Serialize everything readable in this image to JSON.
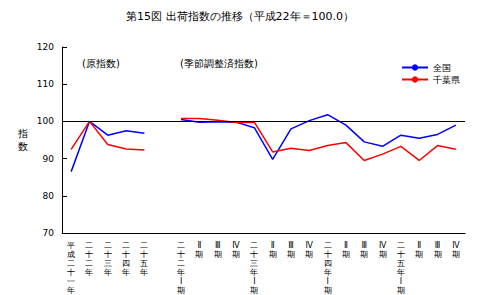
{
  "chart_data": {
    "type": "line",
    "title": "第15図 出荷指数の推移（平成22年＝100.0）",
    "y_label": "指数",
    "annotations": [
      "(原指数)",
      "(季節調整済指数)"
    ],
    "categories": [
      "平成二十一年",
      "二十二年",
      "二十三年",
      "二十四年",
      "二十五年",
      null,
      "二十二年Ⅰ期",
      "Ⅱ期",
      "Ⅲ期",
      "Ⅳ期",
      "二十三年Ⅰ期",
      "Ⅱ期",
      "Ⅲ期",
      "Ⅳ期",
      "二十四年Ⅰ期",
      "Ⅱ期",
      "Ⅲ期",
      "Ⅳ期",
      "二十五年Ⅰ期",
      "Ⅱ期",
      "Ⅲ期",
      "Ⅳ期"
    ],
    "series": [
      {
        "name": "全国",
        "color": "#0000ff",
        "values": [
          86.5,
          100,
          96.3,
          97.5,
          96.8,
          null,
          100.5,
          99.8,
          99.9,
          99.8,
          98.3,
          89.8,
          98.0,
          100.2,
          101.8,
          99.0,
          94.5,
          93.3,
          96.3,
          95.5,
          96.5,
          99.0
        ]
      },
      {
        "name": "千葉県",
        "color": "#ff0000",
        "values": [
          92.5,
          100,
          93.8,
          92.6,
          92.3,
          null,
          100.8,
          100.8,
          100.3,
          99.7,
          99.8,
          91.8,
          92.8,
          92.2,
          93.5,
          94.3,
          89.5,
          91.2,
          93.3,
          89.5,
          93.5,
          92.5
        ]
      }
    ],
    "reference_lines": [
      100
    ],
    "ylim": [
      70,
      120
    ],
    "yticks": [
      70,
      80,
      90,
      100,
      110,
      120
    ],
    "grid": false,
    "legend": "upper right"
  }
}
